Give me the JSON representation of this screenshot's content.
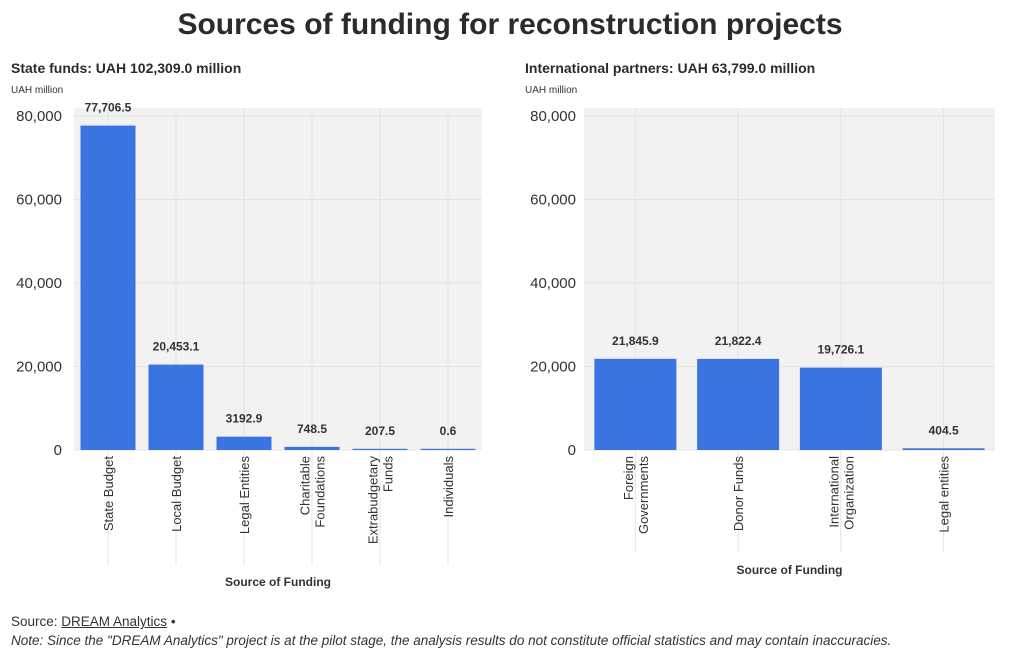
{
  "title": "Sources of funding for reconstruction projects",
  "panels": [
    {
      "subtitle": "State funds: UAH 102,309.0 million",
      "unit": "UAH million"
    },
    {
      "subtitle": "International partners: UAH 63,799.0 million",
      "unit": "UAH million"
    }
  ],
  "footer": {
    "source_prefix": "Source: ",
    "source_link": "DREAM Analytics",
    "source_suffix": " •",
    "note": "Note: Since the \"DREAM Analytics\" project is at the pilot stage, the analysis results do not constitute official statistics and may contain inaccuracies."
  },
  "colors": {
    "bar": "#3a74e0",
    "plot_background": "#f2f2f2",
    "gridline": "#e4e4e4"
  },
  "chart_data": [
    {
      "type": "bar",
      "title": "State funds: UAH 102,309.0 million",
      "ylabel": "UAH million",
      "xlabel": "Source of Funding",
      "categories": [
        [
          "State Budget"
        ],
        [
          "Local Budget"
        ],
        [
          "Legal Entities"
        ],
        [
          "Charitable",
          "Foundations"
        ],
        [
          "Extrabudgetary",
          "Funds"
        ],
        [
          "Individuals"
        ]
      ],
      "values": [
        77706.5,
        20453.1,
        3192.9,
        748.5,
        207.5,
        0.6
      ],
      "value_labels": [
        "77,706.5",
        "20,453.1",
        "3192.9",
        "748.5",
        "207.5",
        "0.6"
      ],
      "ylim": [
        0,
        80000
      ],
      "yticks": [
        0,
        20000,
        40000,
        60000,
        80000
      ],
      "ytick_labels": [
        "0",
        "20,000",
        "40,000",
        "60,000",
        "80,000"
      ],
      "grid": true
    },
    {
      "type": "bar",
      "title": "International partners: UAH 63,799.0 million",
      "ylabel": "UAH million",
      "xlabel": "Source of Funding",
      "categories": [
        [
          "Foreign",
          "Governments"
        ],
        [
          "Donor Funds"
        ],
        [
          "International",
          "Organization"
        ],
        [
          "Legal entities"
        ]
      ],
      "values": [
        21845.9,
        21822.4,
        19726.1,
        404.5
      ],
      "value_labels": [
        "21,845.9",
        "21,822.4",
        "19,726.1",
        "404.5"
      ],
      "ylim": [
        0,
        80000
      ],
      "yticks": [
        0,
        20000,
        40000,
        60000,
        80000
      ],
      "ytick_labels": [
        "0",
        "20,000",
        "40,000",
        "60,000",
        "80,000"
      ],
      "grid": true
    }
  ]
}
